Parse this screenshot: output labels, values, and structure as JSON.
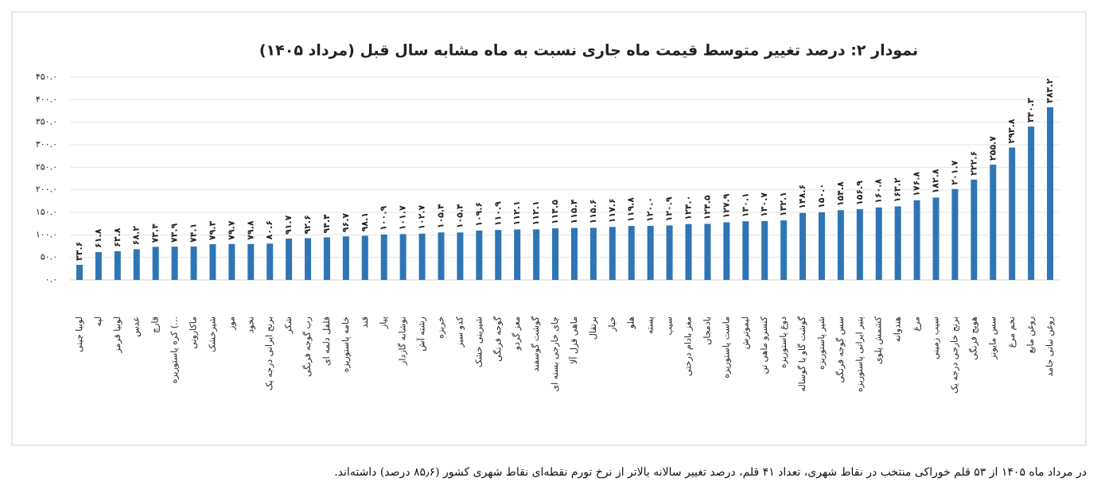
{
  "chart_data": {
    "type": "bar",
    "title": "نمودار ۲: درصد تغییر متوسط قیمت ماه جاری نسبت به ماه مشابه سال قبل (مرداد ۱۴۰۵)",
    "categories": [
      "لوبیا چیتی",
      "لپه",
      "لوبیا قرمز",
      "عدس",
      "قارچ",
      "کره پاستوریزه (…",
      "ماکارونی",
      "شیرخشک",
      "موز",
      "نخود",
      "برنج ایرانی درجه یک",
      "شکر",
      "رب گوجه فرنگی",
      "فلفل دلمه ای",
      "خامه پاستوریزه",
      "قند",
      "پیاز",
      "نوشابه گازدار",
      "رشته آش",
      "خربزه",
      "کدو سبز",
      "شیرینی خشک",
      "گوجه فرنگی",
      "مغز گردو",
      "گوشت گوسفند",
      "چای خارجی بسته ای",
      "ماهی قزل آلا",
      "پرتقال",
      "خیار",
      "هلو",
      "پسته",
      "سیب",
      "مغز بادام درختی",
      "بادمجان",
      "ماست پاستوریزه",
      "لیموترش",
      "کنسرو ماهی تن",
      "دوغ پاستوریزه",
      "گوشت گاو یا گوساله",
      "شیر پاستوریزه",
      "سس گوجه فرنگی",
      "پنیر ایرانی پاستوریزه",
      "کشمش پلوی",
      "هندوانه",
      "مرغ",
      "سیب زمینی",
      "برنج خارجی درجه یک",
      "هویج فرنگی",
      "سس مایونز",
      "تخم مرغ",
      "روغن مایع",
      "روغن نباتی جامد"
    ],
    "values": [
      33.6,
      61.8,
      63.8,
      68.2,
      73.4,
      73.9,
      74.1,
      79.3,
      79.7,
      79.8,
      80.6,
      91.7,
      92.6,
      94.4,
      96.7,
      98.1,
      100.9,
      101.7,
      102.7,
      105.4,
      105.4,
      109.6,
      110.9,
      112.1,
      112.1,
      114.5,
      115.4,
      115.6,
      117.6,
      119.8,
      120.0,
      120.9,
      124.0,
      124.5,
      127.9,
      130.1,
      130.7,
      132.1,
      148.6,
      150.0,
      154.8,
      156.9,
      160.8,
      163.2,
      176.8,
      182.8,
      201.7,
      222.6,
      255.7,
      293.8,
      340.3,
      383.2
    ],
    "value_labels": [
      "۳۳.۶",
      "۶۱.۸",
      "۶۳.۸",
      "۶۸.۲",
      "۷۳.۴",
      "۷۳.۹",
      "۷۴.۱",
      "۷۹.۳",
      "۷۹.۷",
      "۷۹.۸",
      "۸۰.۶",
      "۹۱.۷",
      "۹۲.۶",
      "۹۴.۴",
      "۹۶.۷",
      "۹۸.۱",
      "۱۰۰.۹",
      "۱۰۱.۷",
      "۱۰۲.۷",
      "۱۰۵.۴",
      "۱۰۵.۴",
      "۱۰۹.۶",
      "۱۱۰.۹",
      "۱۱۲.۱",
      "۱۱۲.۱",
      "۱۱۴.۵",
      "۱۱۵.۴",
      "۱۱۵.۶",
      "۱۱۷.۶",
      "۱۱۹.۸",
      "۱۲۰.۰",
      "۱۲۰.۹",
      "۱۲۴.۰",
      "۱۲۴.۵",
      "۱۲۷.۹",
      "۱۳۰.۱",
      "۱۳۰.۷",
      "۱۳۲.۱",
      "۱۴۸.۶",
      "۱۵۰.۰",
      "۱۵۴.۸",
      "۱۵۶.۹",
      "۱۶۰.۸",
      "۱۶۳.۲",
      "۱۷۶.۸",
      "۱۸۲.۸",
      "۲۰۱.۷",
      "۲۲۲.۶",
      "۲۵۵.۷",
      "۲۹۳.۸",
      "۳۴۰.۳",
      "۳۸۳.۲"
    ],
    "color": "#2e75b6",
    "ylim": [
      0,
      450
    ],
    "yticks": [
      {
        "value": 0,
        "label": "۰.۰"
      },
      {
        "value": 50,
        "label": "۵۰.۰"
      },
      {
        "value": 100,
        "label": "۱۰۰.۰"
      },
      {
        "value": 150,
        "label": "۱۵۰.۰"
      },
      {
        "value": 200,
        "label": "۲۰۰.۰"
      },
      {
        "value": 250,
        "label": "۲۵۰.۰"
      },
      {
        "value": 300,
        "label": "۳۰۰.۰"
      },
      {
        "value": 350,
        "label": "۳۵۰.۰"
      },
      {
        "value": 400,
        "label": "۴۰۰.۰"
      },
      {
        "value": 450,
        "label": "۴۵۰.۰"
      }
    ],
    "grid": true
  },
  "footnote": "در مرداد ماه ۱۴۰۵ از ۵۳ قلم خوراکی منتخب در نقاط شهری، تعداد ۴۱ قلم، درصد تغییر سالانه بالاتر از نرخ تورم نقطه‌ای نقاط شهری کشور (۸۵٫۶ درصد) داشته‌اند."
}
